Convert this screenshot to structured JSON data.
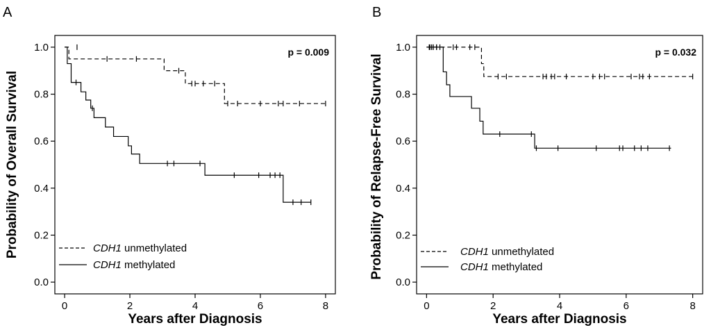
{
  "chart_data": [
    {
      "panel": "A",
      "type": "line",
      "subtype": "kaplan-meier",
      "xlabel": "Years after Diagnosis",
      "ylabel": "Probability of Overall Survival",
      "xlim": [
        -0.3,
        8.3
      ],
      "ylim": [
        -0.05,
        1.05
      ],
      "xticks": [
        0,
        2,
        4,
        6,
        8
      ],
      "yticks": [
        0.0,
        0.2,
        0.4,
        0.6,
        0.8,
        1.0
      ],
      "xtick_labels": [
        "0",
        "2",
        "4",
        "6",
        "8"
      ],
      "ytick_labels": [
        "0.0",
        "0.2",
        "0.4",
        "0.6",
        "0.8",
        "1.0"
      ],
      "annotation": "p = 0.009",
      "legend_position": "bottom-left",
      "series": [
        {
          "name": "CDH1 unmethylated",
          "gene": "CDH1",
          "label_rest": " unmethylated",
          "style": "dashed",
          "steps": [
            [
              0,
              1.0
            ],
            [
              0.13,
              0.95
            ],
            [
              3.05,
              0.9
            ],
            [
              3.7,
              0.845
            ],
            [
              4.9,
              0.76
            ],
            [
              8.0,
              0.76
            ]
          ],
          "censored": [
            [
              0.38,
              1.0
            ],
            [
              1.3,
              0.95
            ],
            [
              2.2,
              0.95
            ],
            [
              3.5,
              0.9
            ],
            [
              3.9,
              0.845
            ],
            [
              4.0,
              0.845
            ],
            [
              4.25,
              0.845
            ],
            [
              4.6,
              0.845
            ],
            [
              5.0,
              0.76
            ],
            [
              5.3,
              0.76
            ],
            [
              6.0,
              0.76
            ],
            [
              6.55,
              0.76
            ],
            [
              6.7,
              0.76
            ],
            [
              7.2,
              0.76
            ],
            [
              8.0,
              0.76
            ]
          ]
        },
        {
          "name": "CDH1 methylated",
          "gene": "CDH1",
          "label_rest": " methylated",
          "style": "solid",
          "steps": [
            [
              0,
              1.0
            ],
            [
              0.08,
              0.93
            ],
            [
              0.2,
              0.85
            ],
            [
              0.5,
              0.81
            ],
            [
              0.65,
              0.775
            ],
            [
              0.8,
              0.74
            ],
            [
              0.9,
              0.7
            ],
            [
              1.25,
              0.66
            ],
            [
              1.5,
              0.62
            ],
            [
              1.95,
              0.58
            ],
            [
              2.05,
              0.545
            ],
            [
              2.3,
              0.505
            ],
            [
              4.3,
              0.455
            ],
            [
              6.7,
              0.34
            ],
            [
              7.55,
              0.34
            ]
          ],
          "censored": [
            [
              0.35,
              0.85
            ],
            [
              0.85,
              0.74
            ],
            [
              3.15,
              0.505
            ],
            [
              3.35,
              0.505
            ],
            [
              4.15,
              0.505
            ],
            [
              5.2,
              0.455
            ],
            [
              5.95,
              0.455
            ],
            [
              6.3,
              0.455
            ],
            [
              6.45,
              0.455
            ],
            [
              6.6,
              0.455
            ],
            [
              7.0,
              0.34
            ],
            [
              7.25,
              0.34
            ],
            [
              7.55,
              0.34
            ]
          ]
        }
      ]
    },
    {
      "panel": "B",
      "type": "line",
      "subtype": "kaplan-meier",
      "xlabel": "Years after Diagnosis",
      "ylabel": "Probability of Relapse-Free Survival",
      "xlim": [
        -0.3,
        8.3
      ],
      "ylim": [
        -0.05,
        1.05
      ],
      "xticks": [
        0,
        2,
        4,
        6,
        8
      ],
      "yticks": [
        0.0,
        0.2,
        0.4,
        0.6,
        0.8,
        1.0
      ],
      "xtick_labels": [
        "0",
        "2",
        "4",
        "6",
        "8"
      ],
      "ytick_labels": [
        "0.0",
        "0.2",
        "0.4",
        "0.6",
        "0.8",
        "1.0"
      ],
      "annotation": "p = 0.032",
      "legend_position": "bottom-left",
      "series": [
        {
          "name": "CDH1 unmethylated",
          "gene": "CDH1",
          "label_rest": " unmethylated",
          "style": "dashed",
          "steps": [
            [
              0,
              1.0
            ],
            [
              1.65,
              0.93
            ],
            [
              1.72,
              0.875
            ],
            [
              8.0,
              0.875
            ]
          ],
          "censored": [
            [
              0.08,
              1.0
            ],
            [
              0.15,
              1.0
            ],
            [
              0.2,
              1.0
            ],
            [
              0.3,
              1.0
            ],
            [
              0.4,
              1.0
            ],
            [
              0.8,
              1.0
            ],
            [
              0.9,
              1.0
            ],
            [
              1.3,
              1.0
            ],
            [
              1.45,
              1.0
            ],
            [
              2.15,
              0.875
            ],
            [
              2.4,
              0.875
            ],
            [
              3.5,
              0.875
            ],
            [
              3.6,
              0.875
            ],
            [
              3.75,
              0.875
            ],
            [
              3.85,
              0.875
            ],
            [
              4.2,
              0.875
            ],
            [
              5.0,
              0.875
            ],
            [
              5.2,
              0.875
            ],
            [
              5.35,
              0.875
            ],
            [
              6.15,
              0.875
            ],
            [
              6.4,
              0.875
            ],
            [
              6.5,
              0.875
            ],
            [
              6.7,
              0.875
            ],
            [
              8.0,
              0.875
            ]
          ]
        },
        {
          "name": "CDH1 methylated",
          "gene": "CDH1",
          "label_rest": " methylated",
          "style": "solid",
          "steps": [
            [
              0,
              1.0
            ],
            [
              0.5,
              0.895
            ],
            [
              0.6,
              0.84
            ],
            [
              0.7,
              0.79
            ],
            [
              1.35,
              0.74
            ],
            [
              1.6,
              0.685
            ],
            [
              1.7,
              0.63
            ],
            [
              3.25,
              0.57
            ],
            [
              7.35,
              0.57
            ]
          ],
          "censored": [
            [
              0.1,
              1.0
            ],
            [
              0.2,
              1.0
            ],
            [
              0.3,
              1.0
            ],
            [
              2.2,
              0.63
            ],
            [
              3.15,
              0.63
            ],
            [
              3.3,
              0.57
            ],
            [
              3.95,
              0.57
            ],
            [
              5.1,
              0.57
            ],
            [
              5.8,
              0.57
            ],
            [
              5.9,
              0.57
            ],
            [
              6.25,
              0.57
            ],
            [
              6.45,
              0.57
            ],
            [
              6.65,
              0.57
            ],
            [
              7.3,
              0.57
            ]
          ]
        }
      ]
    }
  ]
}
